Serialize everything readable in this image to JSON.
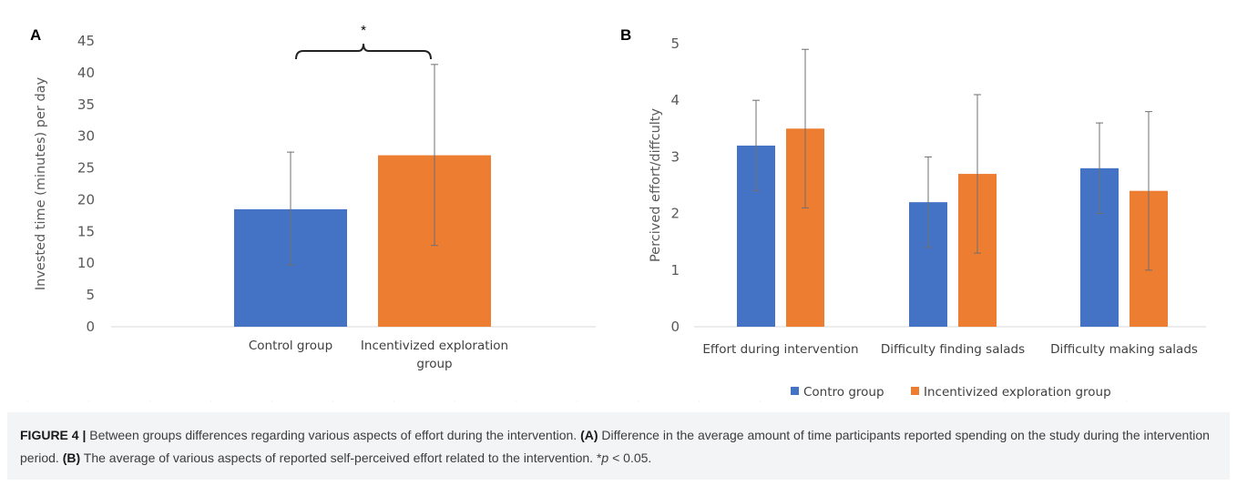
{
  "colors": {
    "control": "#4472c4",
    "incentivized": "#ed7d31",
    "axis": "#d9d9d9",
    "errorbar": "#707070"
  },
  "chart_data": [
    {
      "panel": "A",
      "type": "bar",
      "ylabel": "Invested time (minutes) per day",
      "ylim": [
        0,
        45
      ],
      "yticks": [
        0,
        5,
        10,
        15,
        20,
        25,
        30,
        35,
        40,
        45
      ],
      "categories": [
        "Control group",
        "Incentivized exploration group"
      ],
      "values": [
        18.5,
        27.0
      ],
      "error_low": [
        9.7,
        12.8
      ],
      "error_high": [
        27.5,
        41.3
      ],
      "annotation": "*",
      "grid": false
    },
    {
      "panel": "B",
      "type": "bar",
      "ylabel": "Percived effort/diffculty",
      "ylim": [
        0,
        5
      ],
      "yticks": [
        0,
        1,
        2,
        3,
        4,
        5
      ],
      "categories": [
        "Effort during intervention",
        "Difficulty finding salads",
        "Difficulty making salads"
      ],
      "series": [
        {
          "name": "Contro group",
          "values": [
            3.2,
            2.2,
            2.8
          ],
          "error_low": [
            2.4,
            1.4,
            2.0
          ],
          "error_high": [
            4.0,
            3.0,
            3.6
          ]
        },
        {
          "name": "Incentivized exploration group",
          "values": [
            3.5,
            2.7,
            2.4
          ],
          "error_low": [
            2.1,
            1.3,
            1.0
          ],
          "error_high": [
            4.9,
            4.1,
            3.8
          ]
        }
      ],
      "legend": "bottom",
      "grid": false
    }
  ],
  "caption": {
    "label": "FIGURE 4 |",
    "intro": " Between groups differences regarding various aspects of effort during the intervention. ",
    "a_label": "(A)",
    "a_text": " Difference in the average amount of time participants reported spending on the study during the intervention period. ",
    "b_label": "(B)",
    "b_text": " The average of various aspects of reported self-perceived effort related to the intervention. ",
    "sig_star": "*",
    "sig_p": "p",
    "sig_rest": " < 0.05."
  }
}
